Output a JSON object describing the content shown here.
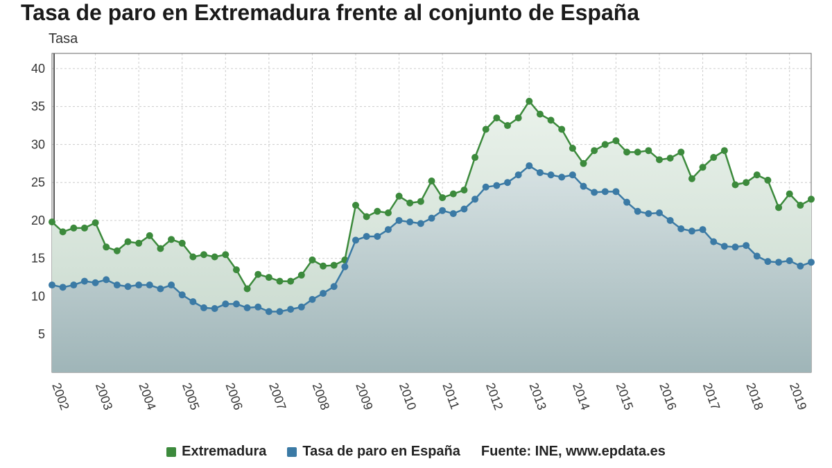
{
  "title": "Tasa de paro en Extremadura frente al conjunto de España",
  "chart": {
    "type": "area-line",
    "ylabel": "Tasa",
    "background_color": "#ffffff",
    "plot_background": "#ffffff",
    "grid_color": "#cccccc",
    "grid_dash": "3,3",
    "grid_width": 1,
    "axis_color": "#666666",
    "ylim": [
      0,
      42
    ],
    "ytick_step": 5,
    "yticks": [
      5,
      10,
      15,
      20,
      25,
      30,
      35,
      40
    ],
    "xlabels": [
      "2002",
      "2003",
      "2004",
      "2005",
      "2006",
      "2007",
      "2008",
      "2009",
      "2010",
      "2011",
      "2012",
      "2013",
      "2014",
      "2015",
      "2016",
      "2017",
      "2018",
      "2019"
    ],
    "xlabel_fontsize": 18,
    "xlabel_rotation": 70,
    "ylabel_fontsize": 18,
    "title_fontsize": 32,
    "area_gradient_top": "#e8efe9",
    "area_gradient_bottom_ext": "#bfd3c6",
    "area_gradient_bottom_esp": "#a9bcc0",
    "series": [
      {
        "name": "Extremadura",
        "color": "#3c8a3c",
        "line_width": 2.5,
        "marker": "circle",
        "marker_size": 5,
        "marker_color": "#3c8a3c",
        "fill": true,
        "fill_top": "#eaf2eb",
        "fill_bottom": "#c5d7cb",
        "data": [
          19.8,
          18.5,
          19.0,
          19.0,
          19.7,
          16.5,
          16.0,
          17.2,
          17.0,
          18.0,
          16.3,
          17.5,
          17.0,
          15.2,
          15.5,
          15.2,
          15.5,
          13.5,
          11.0,
          12.9,
          12.5,
          12.0,
          12.0,
          12.8,
          14.8,
          14.0,
          14.1,
          14.8,
          22.0,
          20.5,
          21.2,
          21.0,
          23.2,
          22.3,
          22.5,
          25.2,
          23.0,
          23.5,
          24.0,
          28.3,
          32.0,
          33.5,
          32.5,
          33.5,
          35.7,
          34.0,
          33.2,
          32.0,
          29.5,
          27.5,
          29.2,
          30.0,
          30.5,
          29.0,
          29.0,
          29.2,
          28.0,
          28.2,
          29.0,
          25.5,
          27.0,
          28.3,
          29.2,
          24.7,
          25.0,
          26.0,
          25.3,
          21.7,
          23.5,
          22.0,
          22.8
        ]
      },
      {
        "name": "Tasa de paro en España",
        "color": "#3b7aa5",
        "line_width": 2.5,
        "marker": "circle",
        "marker_size": 5,
        "marker_color": "#3b7aa5",
        "fill": true,
        "fill_top": "#d7e2e3",
        "fill_bottom": "#9fb5b8",
        "data": [
          11.5,
          11.2,
          11.5,
          12.0,
          11.8,
          12.2,
          11.5,
          11.3,
          11.5,
          11.5,
          11.0,
          11.5,
          10.2,
          9.3,
          8.5,
          8.4,
          9.0,
          9.0,
          8.5,
          8.6,
          8.0,
          8.0,
          8.3,
          8.6,
          9.6,
          10.4,
          11.3,
          13.9,
          17.4,
          17.9,
          17.9,
          18.8,
          20.0,
          19.8,
          19.6,
          20.3,
          21.3,
          20.9,
          21.5,
          22.8,
          24.4,
          24.6,
          25.0,
          26.0,
          27.2,
          26.3,
          26.0,
          25.7,
          26.0,
          24.5,
          23.7,
          23.8,
          23.8,
          22.4,
          21.2,
          20.9,
          21.0,
          20.0,
          18.9,
          18.6,
          18.8,
          17.2,
          16.6,
          16.5,
          16.7,
          15.3,
          14.6,
          14.5,
          14.7,
          14.0,
          14.5
        ]
      }
    ]
  },
  "legend": {
    "items": [
      {
        "label": "Extremadura",
        "color": "#3c8a3c"
      },
      {
        "label": "Tasa de paro en España",
        "color": "#3b7aa5"
      }
    ],
    "source_label": "Fuente: INE, www.epdata.es"
  }
}
